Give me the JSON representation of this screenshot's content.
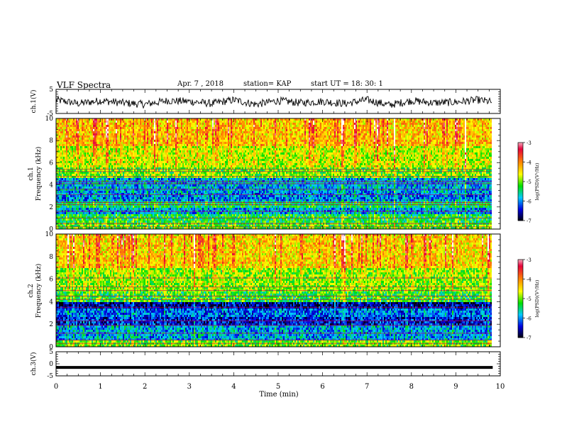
{
  "header": {
    "title": "VLF Spectra",
    "date": "Apr. 7 , 2018",
    "station": "station= KAP",
    "start": "start UT = 18: 30: 1"
  },
  "colorbar": {
    "label": "log(PSD)(V²/Hz)",
    "ticks": [
      -3,
      -4,
      -5,
      -6,
      -7
    ],
    "colors": [
      "#ffffff",
      "#e6003a",
      "#ff8a00",
      "#ffff00",
      "#00e000",
      "#00c8ff",
      "#0000e0",
      "#000000"
    ]
  },
  "chart_data": [
    {
      "type": "line",
      "panel": "ch1-waveform",
      "ylabel": "ch.1(V)",
      "ylim": [
        -5,
        5
      ],
      "yticks": [
        5,
        -5
      ],
      "xlim": [
        0,
        10
      ],
      "description_series": "noise waveform, amplitude approx ±2.5 V around -0.5 V",
      "x": [
        0,
        0.5,
        1,
        1.5,
        2,
        2.5,
        3,
        3.5,
        4,
        4.5,
        5,
        5.5,
        6,
        6.5,
        7,
        7.5,
        8,
        8.5,
        9,
        9.5,
        9.83
      ],
      "values": [
        1.0,
        -1.5,
        0.5,
        -1.0,
        -2.0,
        0.5,
        0.0,
        -1.5,
        1.0,
        -2.0,
        0.5,
        -1.0,
        0.0,
        -1.5,
        1.0,
        -2.5,
        0.5,
        -1.0,
        -0.5,
        1.0,
        -0.5
      ]
    },
    {
      "type": "heatmap",
      "panel": "ch1-spectrogram",
      "ylabel": "ch.1\nFrequency (kHz)",
      "ylim": [
        0,
        10
      ],
      "yticks": [
        0,
        2,
        4,
        6,
        8,
        10
      ],
      "xlim": [
        0,
        10
      ],
      "zlim": [
        -7,
        -3
      ],
      "bands": [
        {
          "fmin": 0.0,
          "fmax": 0.5,
          "level": -5.1
        },
        {
          "fmin": 0.5,
          "fmax": 1.3,
          "level": -5.3
        },
        {
          "fmin": 1.3,
          "fmax": 2.0,
          "level": -5.9
        },
        {
          "fmin": 2.0,
          "fmax": 2.5,
          "level": -5.4
        },
        {
          "fmin": 2.5,
          "fmax": 3.3,
          "level": -6.0
        },
        {
          "fmin": 3.3,
          "fmax": 4.6,
          "level": -5.9
        },
        {
          "fmin": 4.6,
          "fmax": 5.5,
          "level": -5.0
        },
        {
          "fmin": 5.5,
          "fmax": 7.5,
          "level": -4.7
        },
        {
          "fmin": 7.5,
          "fmax": 10.0,
          "level": -4.3
        }
      ],
      "lines_khz": [
        0.2,
        0.5,
        1.0,
        1.6,
        2.2,
        2.4,
        3.1,
        3.6,
        4.1,
        4.3,
        4.75,
        5.2,
        5.4
      ]
    },
    {
      "type": "heatmap",
      "panel": "ch2-spectrogram",
      "ylabel": "ch.2\nFrequency (kHz)",
      "ylim": [
        0,
        10
      ],
      "yticks": [
        0,
        2,
        4,
        6,
        8,
        10
      ],
      "xlim": [
        0,
        10
      ],
      "zlim": [
        -7,
        -3
      ],
      "bands": [
        {
          "fmin": 0.0,
          "fmax": 0.6,
          "level": -5.0
        },
        {
          "fmin": 0.6,
          "fmax": 1.8,
          "level": -5.9
        },
        {
          "fmin": 1.8,
          "fmax": 2.6,
          "level": -6.4
        },
        {
          "fmin": 2.6,
          "fmax": 3.4,
          "level": -6.1
        },
        {
          "fmin": 3.4,
          "fmax": 4.0,
          "level": -6.6
        },
        {
          "fmin": 4.0,
          "fmax": 5.0,
          "level": -5.2
        },
        {
          "fmin": 5.0,
          "fmax": 7.0,
          "level": -4.9
        },
        {
          "fmin": 7.0,
          "fmax": 10.0,
          "level": -4.4
        }
      ],
      "lines_khz": [
        0.3,
        0.6,
        1.2,
        1.9,
        2.3,
        3.5,
        4.2,
        4.5,
        5.0,
        5.3,
        6.1
      ]
    },
    {
      "type": "line",
      "panel": "ch3-waveform",
      "ylabel": "ch.3(V)",
      "ylim": [
        -5,
        5
      ],
      "yticks": [
        5,
        0,
        -5
      ],
      "xlim": [
        0,
        10
      ],
      "x": [
        0,
        9.83
      ],
      "values": [
        -1.5,
        -1.5
      ]
    }
  ],
  "xaxis": {
    "label": "Time (min)",
    "ticks": [
      0,
      1,
      2,
      3,
      4,
      5,
      6,
      7,
      8,
      9,
      10
    ],
    "tick_labels": [
      "0",
      "1",
      "2",
      "3",
      "4",
      "5",
      "6",
      "7",
      "8",
      "9",
      "10"
    ]
  },
  "labels": {
    "ch1_wave": "ch.1(V)",
    "ch1_spec_top": "ch.1",
    "ch1_spec_bottom": "Frequency (kHz)",
    "ch2_spec_top": "ch.2",
    "ch2_spec_bottom": "Frequency (kHz)",
    "ch3_wave": "ch.3(V)"
  }
}
